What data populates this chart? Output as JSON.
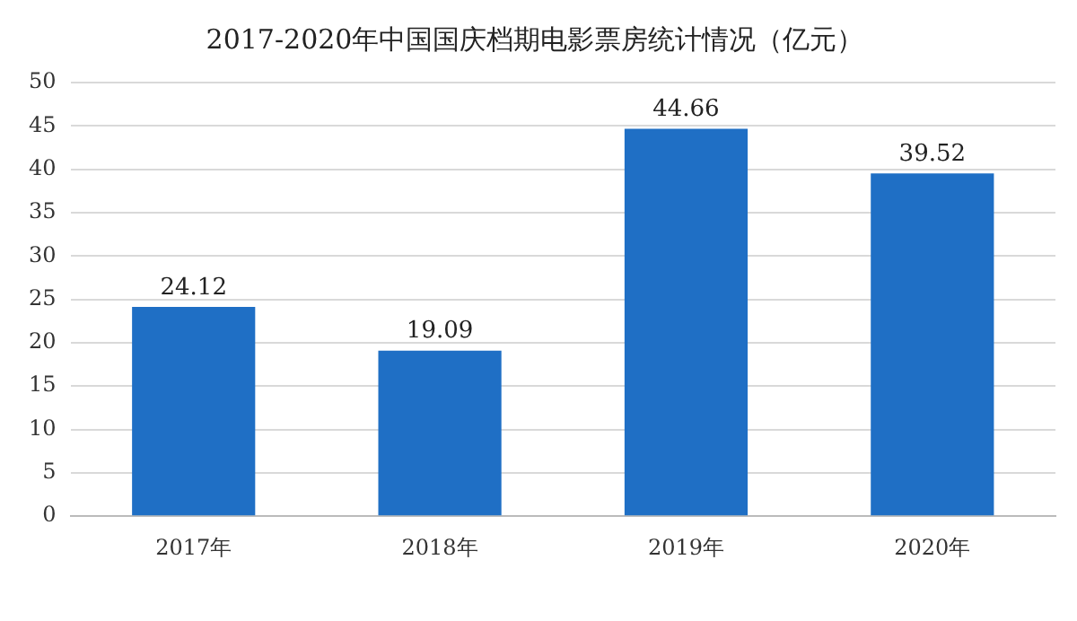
{
  "chart_data": {
    "type": "bar",
    "title": "2017-2020年中国国庆档期电影票房统计情况（亿元）",
    "categories": [
      "2017年",
      "2018年",
      "2019年",
      "2020年"
    ],
    "values": [
      24.12,
      19.09,
      44.66,
      39.52
    ],
    "color": "#1f6fc5",
    "ylim": [
      0,
      50
    ],
    "yticks": [
      0,
      5,
      10,
      15,
      20,
      25,
      30,
      35,
      40,
      45,
      50
    ],
    "grid": "y",
    "data_labels": true
  }
}
